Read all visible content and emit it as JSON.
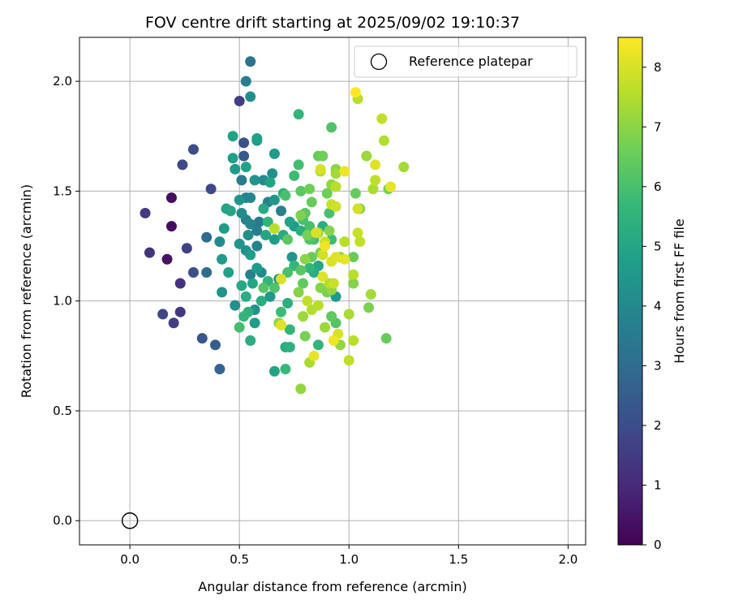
{
  "chart_data": {
    "type": "scatter",
    "title": "FOV centre drift starting at 2025/09/02 19:10:37",
    "xlabel": "Angular distance from reference (arcmin)",
    "ylabel": "Rotation from reference (arcmin)",
    "xlim": [
      -0.23,
      2.08
    ],
    "ylim": [
      -0.11,
      2.2
    ],
    "xticks": [
      "0.0",
      "0.5",
      "1.0",
      "1.5",
      "2.0"
    ],
    "yticks": [
      "0.0",
      "0.5",
      "1.0",
      "1.5",
      "2.0"
    ],
    "grid": true,
    "legend": {
      "position": "top-right",
      "label": "Reference platepar"
    },
    "reference": {
      "x": 0.0,
      "y": 0.0
    },
    "colorbar": {
      "label": "Hours from first FF file",
      "range": [
        0,
        8.5
      ],
      "ticks": [
        "0",
        "1",
        "2",
        "3",
        "4",
        "5",
        "6",
        "7",
        "8"
      ],
      "colormap": [
        "#440154",
        "#482878",
        "#3e4989",
        "#31688e",
        "#26828e",
        "#1f9e89",
        "#35b779",
        "#6ece58",
        "#b5de2b",
        "#fde725"
      ]
    },
    "points": [
      [
        0.19,
        1.47,
        0.3
      ],
      [
        0.19,
        1.34,
        0.3
      ],
      [
        0.17,
        1.19,
        0.4
      ],
      [
        0.07,
        1.4,
        1.5
      ],
      [
        0.09,
        1.22,
        1.3
      ],
      [
        0.23,
        1.08,
        1.2
      ],
      [
        0.15,
        0.94,
        1.8
      ],
      [
        0.2,
        0.9,
        1.6
      ],
      [
        0.23,
        0.95,
        1.4
      ],
      [
        0.26,
        1.24,
        1.7
      ],
      [
        0.24,
        1.62,
        1.9
      ],
      [
        0.29,
        1.69,
        2.0
      ],
      [
        0.29,
        1.13,
        2.1
      ],
      [
        0.33,
        0.83,
        2.3
      ],
      [
        0.37,
        1.51,
        1.9
      ],
      [
        0.39,
        0.8,
        2.5
      ],
      [
        0.41,
        0.69,
        2.7
      ],
      [
        0.35,
        1.29,
        2.9
      ],
      [
        0.35,
        1.13,
        3.0
      ],
      [
        0.5,
        1.91,
        1.6
      ],
      [
        0.55,
        2.09,
        3.2
      ],
      [
        0.53,
        2.0,
        3.6
      ],
      [
        0.55,
        1.93,
        4.2
      ],
      [
        0.52,
        1.72,
        2.1
      ],
      [
        0.52,
        1.66,
        2.4
      ],
      [
        0.47,
        1.75,
        4.9
      ],
      [
        0.58,
        1.74,
        4.8
      ],
      [
        0.58,
        1.73,
        4.7
      ],
      [
        0.48,
        1.6,
        4.6
      ],
      [
        0.53,
        1.61,
        4.9
      ],
      [
        0.47,
        1.65,
        4.8
      ],
      [
        0.51,
        1.55,
        3.5
      ],
      [
        0.57,
        1.55,
        4.4
      ],
      [
        0.46,
        1.41,
        5.0
      ],
      [
        0.5,
        1.46,
        4.4
      ],
      [
        0.53,
        1.47,
        3.7
      ],
      [
        0.55,
        1.47,
        3.9
      ],
      [
        0.51,
        1.4,
        4.1
      ],
      [
        0.53,
        1.37,
        3.8
      ],
      [
        0.55,
        1.35,
        3.9
      ],
      [
        0.54,
        1.3,
        4.2
      ],
      [
        0.58,
        1.32,
        3.6
      ],
      [
        0.59,
        1.36,
        3.5
      ],
      [
        0.58,
        1.25,
        3.8
      ],
      [
        0.53,
        1.23,
        4.3
      ],
      [
        0.5,
        1.26,
        4.4
      ],
      [
        0.55,
        1.21,
        4.7
      ],
      [
        0.58,
        1.15,
        4.6
      ],
      [
        0.6,
        1.13,
        4.0
      ],
      [
        0.55,
        1.12,
        3.7
      ],
      [
        0.51,
        1.07,
        5.1
      ],
      [
        0.53,
        1.02,
        5.3
      ],
      [
        0.56,
        1.08,
        5.0
      ],
      [
        0.57,
        0.96,
        4.3
      ],
      [
        0.57,
        0.9,
        4.7
      ],
      [
        0.54,
        0.95,
        5.4
      ],
      [
        0.55,
        0.82,
        5.2
      ],
      [
        0.52,
        0.93,
        5.6
      ],
      [
        0.5,
        0.88,
        5.9
      ],
      [
        0.48,
        0.98,
        4.2
      ],
      [
        0.45,
        1.13,
        4.8
      ],
      [
        0.42,
        1.04,
        4.4
      ],
      [
        0.41,
        1.27,
        4.0
      ],
      [
        0.42,
        1.19,
        4.6
      ],
      [
        0.43,
        1.33,
        4.7
      ],
      [
        0.44,
        1.42,
        4.9
      ],
      [
        0.61,
        1.55,
        4.1
      ],
      [
        0.66,
        1.67,
        4.6
      ],
      [
        0.65,
        1.58,
        4.3
      ],
      [
        0.64,
        1.54,
        4.9
      ],
      [
        0.66,
        1.46,
        4.5
      ],
      [
        0.7,
        1.49,
        5.4
      ],
      [
        0.71,
        1.48,
        6.0
      ],
      [
        0.63,
        1.45,
        3.8
      ],
      [
        0.61,
        1.42,
        5.1
      ],
      [
        0.63,
        1.36,
        5.5
      ],
      [
        0.69,
        1.41,
        3.7
      ],
      [
        0.73,
        1.36,
        4.9
      ],
      [
        0.75,
        1.34,
        4.6
      ],
      [
        0.66,
        1.33,
        7.6
      ],
      [
        0.62,
        1.3,
        5.0
      ],
      [
        0.66,
        1.28,
        4.7
      ],
      [
        0.7,
        1.3,
        5.2
      ],
      [
        0.72,
        1.28,
        6.3
      ],
      [
        0.74,
        1.2,
        4.5
      ],
      [
        0.75,
        1.16,
        5.6
      ],
      [
        0.78,
        1.14,
        6.3
      ],
      [
        0.72,
        1.13,
        6.0
      ],
      [
        0.69,
        1.1,
        8.0
      ],
      [
        0.66,
        1.06,
        6.1
      ],
      [
        0.68,
        1.1,
        4.1
      ],
      [
        0.63,
        1.09,
        5.5
      ],
      [
        0.61,
        1.06,
        6.2
      ],
      [
        0.6,
        1.0,
        5.3
      ],
      [
        0.64,
        1.02,
        4.5
      ],
      [
        0.69,
        0.95,
        5.8
      ],
      [
        0.72,
        0.99,
        5.3
      ],
      [
        0.68,
        0.9,
        7.0
      ],
      [
        0.69,
        0.89,
        8.1
      ],
      [
        0.73,
        0.87,
        5.6
      ],
      [
        0.71,
        0.79,
        5.3
      ],
      [
        0.73,
        0.79,
        5.4
      ],
      [
        0.66,
        0.68,
        4.9
      ],
      [
        0.71,
        0.69,
        5.7
      ],
      [
        0.78,
        0.6,
        7.1
      ],
      [
        0.77,
        1.85,
        5.6
      ],
      [
        0.75,
        1.57,
        5.8
      ],
      [
        0.77,
        1.62,
        5.9
      ],
      [
        0.82,
        1.51,
        6.6
      ],
      [
        0.78,
        1.5,
        6.3
      ],
      [
        0.83,
        1.45,
        6.5
      ],
      [
        0.8,
        1.4,
        6.3
      ],
      [
        0.78,
        1.39,
        6.8
      ],
      [
        0.79,
        1.37,
        6.0
      ],
      [
        0.82,
        1.34,
        6.0
      ],
      [
        0.78,
        1.32,
        5.3
      ],
      [
        0.81,
        1.3,
        6.7
      ],
      [
        0.82,
        1.28,
        6.2
      ],
      [
        0.84,
        1.28,
        5.9
      ],
      [
        0.83,
        1.2,
        6.5
      ],
      [
        0.8,
        1.19,
        7.0
      ],
      [
        0.82,
        1.15,
        5.6
      ],
      [
        0.79,
        1.08,
        6.4
      ],
      [
        0.77,
        1.04,
        6.9
      ],
      [
        0.81,
        1.0,
        7.7
      ],
      [
        0.83,
        0.96,
        7.5
      ],
      [
        0.84,
        1.13,
        5.3
      ],
      [
        0.86,
        1.16,
        5.0
      ],
      [
        0.85,
        1.31,
        8.0
      ],
      [
        0.86,
        1.31,
        7.3
      ],
      [
        0.88,
        1.34,
        5.2
      ],
      [
        0.89,
        1.27,
        7.8
      ],
      [
        0.89,
        1.25,
        8.3
      ],
      [
        0.88,
        1.21,
        7.9
      ],
      [
        0.87,
        1.22,
        6.8
      ],
      [
        0.88,
        1.11,
        8.1
      ],
      [
        0.87,
        1.06,
        6.9
      ],
      [
        0.86,
        0.98,
        7.6
      ],
      [
        0.89,
        0.88,
        7.2
      ],
      [
        0.86,
        0.8,
        5.6
      ],
      [
        0.84,
        0.75,
        8.2
      ],
      [
        0.82,
        0.72,
        7.4
      ],
      [
        0.8,
        0.84,
        6.7
      ],
      [
        0.79,
        0.93,
        7.2
      ],
      [
        0.88,
        1.66,
        6.6
      ],
      [
        0.86,
        1.66,
        6.5
      ],
      [
        0.92,
        1.79,
        6.1
      ],
      [
        0.87,
        1.6,
        8.0
      ],
      [
        0.87,
        1.59,
        7.5
      ],
      [
        0.92,
        1.53,
        7.1
      ],
      [
        0.94,
        1.52,
        7.6
      ],
      [
        0.94,
        1.58,
        7.3
      ],
      [
        0.94,
        1.6,
        7.0
      ],
      [
        0.9,
        1.49,
        6.6
      ],
      [
        0.92,
        1.44,
        7.8
      ],
      [
        0.94,
        1.43,
        7.9
      ],
      [
        0.98,
        1.59,
        8.3
      ],
      [
        0.91,
        1.4,
        6.0
      ],
      [
        0.91,
        1.32,
        6.9
      ],
      [
        0.92,
        1.28,
        5.8
      ],
      [
        0.98,
        1.27,
        7.6
      ],
      [
        0.96,
        1.2,
        7.1
      ],
      [
        0.94,
        1.2,
        8.1
      ],
      [
        0.92,
        1.18,
        8.0
      ],
      [
        0.98,
        1.19,
        8.2
      ],
      [
        0.91,
        1.08,
        7.5
      ],
      [
        0.93,
        1.08,
        7.8
      ],
      [
        0.92,
        1.05,
        7.1
      ],
      [
        0.9,
        1.04,
        6.7
      ],
      [
        0.94,
        1.02,
        4.6
      ],
      [
        0.92,
        0.93,
        6.4
      ],
      [
        0.94,
        0.9,
        6.2
      ],
      [
        0.96,
        0.8,
        7.1
      ],
      [
        0.93,
        0.82,
        8.3
      ],
      [
        0.95,
        0.85,
        8.0
      ],
      [
        1.0,
        0.73,
        7.7
      ],
      [
        1.02,
        0.82,
        7.6
      ],
      [
        1.0,
        0.94,
        7.4
      ],
      [
        1.02,
        1.08,
        6.9
      ],
      [
        1.02,
        1.12,
        7.6
      ],
      [
        1.02,
        1.2,
        6.5
      ],
      [
        1.05,
        1.27,
        7.7
      ],
      [
        1.04,
        1.31,
        7.8
      ],
      [
        1.04,
        1.42,
        7.9
      ],
      [
        1.05,
        1.42,
        6.8
      ],
      [
        1.03,
        1.49,
        6.5
      ],
      [
        1.04,
        1.92,
        7.6
      ],
      [
        1.03,
        1.95,
        8.5
      ],
      [
        1.08,
        1.66,
        7.2
      ],
      [
        1.11,
        1.51,
        7.4
      ],
      [
        1.12,
        1.55,
        7.7
      ],
      [
        1.12,
        1.62,
        8.1
      ],
      [
        1.15,
        1.83,
        7.7
      ],
      [
        1.16,
        1.73,
        7.5
      ],
      [
        1.18,
        1.51,
        6.7
      ],
      [
        1.19,
        1.52,
        8.2
      ],
      [
        1.25,
        1.61,
        7.3
      ],
      [
        1.09,
        0.97,
        6.8
      ],
      [
        1.1,
        1.03,
        7.3
      ],
      [
        1.17,
        0.83,
        6.5
      ]
    ]
  }
}
